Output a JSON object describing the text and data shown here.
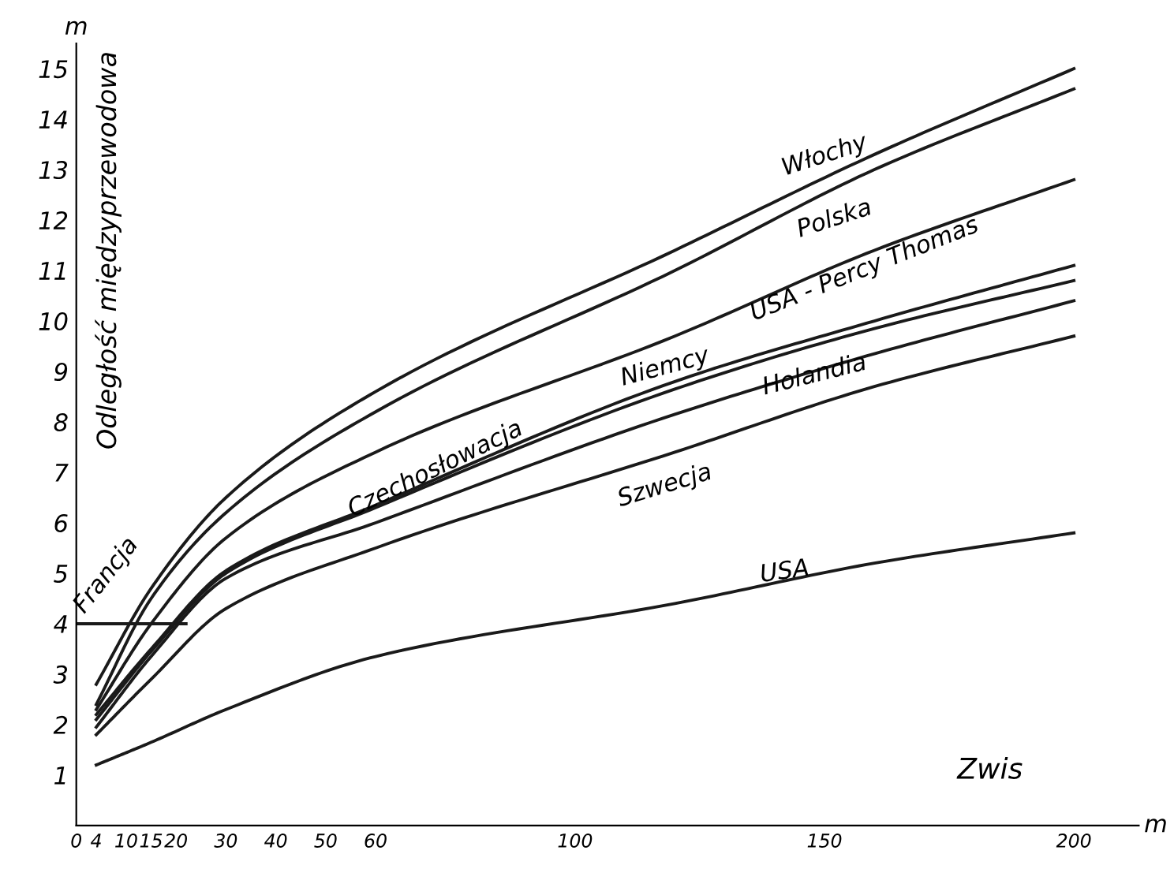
{
  "chart_data": {
    "type": "line",
    "xlabel": "Zwis",
    "ylabel": "Odległość międzyprzewodowa",
    "annotations": [
      "m",
      "m"
    ],
    "x": [
      4,
      15,
      30,
      60,
      120,
      160,
      200
    ],
    "series": [
      {
        "name": "Włochy",
        "color": "#1a1a1a",
        "values": [
          2.8,
          4.7,
          6.5,
          8.6,
          11.4,
          13.3,
          15.0
        ]
      },
      {
        "name": "Polska",
        "color": "#1a1a1a",
        "values": [
          2.4,
          4.5,
          6.2,
          8.2,
          11.0,
          13.0,
          14.6
        ]
      },
      {
        "name": "USA - Percy Thomas",
        "color": "#1a1a1a",
        "values": [
          2.3,
          4.0,
          5.7,
          7.4,
          9.7,
          11.4,
          12.8
        ]
      },
      {
        "name": "Niemcy",
        "color": "#1a1a1a",
        "values": [
          2.2,
          3.5,
          5.05,
          6.35,
          8.8,
          10.0,
          11.1
        ]
      },
      {
        "name": "Czechosłowacja",
        "color": "#1a1a1a",
        "values": [
          2.1,
          3.45,
          5.0,
          6.3,
          8.65,
          9.85,
          10.8
        ]
      },
      {
        "name": "Holandia",
        "color": "#1a1a1a",
        "values": [
          1.95,
          3.35,
          4.9,
          6.0,
          8.15,
          9.35,
          10.4
        ]
      },
      {
        "name": "Szwecja",
        "color": "#1a1a1a",
        "values": [
          1.8,
          2.9,
          4.3,
          5.5,
          7.4,
          8.7,
          9.7
        ]
      },
      {
        "name": "USA",
        "color": "#1a1a1a",
        "values": [
          1.2,
          1.65,
          2.3,
          3.35,
          4.4,
          5.2,
          5.8
        ]
      },
      {
        "name": "Francja",
        "color": "#1a1a1a",
        "x": [
          0,
          22
        ],
        "values": [
          4,
          4
        ]
      }
    ],
    "xlim": [
      0,
      213
    ],
    "ylim": [
      0,
      15.5
    ],
    "xticks": [
      0,
      4,
      10,
      15,
      20,
      30,
      40,
      50,
      60,
      100,
      150,
      200
    ],
    "yticks": [
      1,
      2,
      3,
      4,
      5,
      6,
      7,
      8,
      9,
      10,
      11,
      12,
      13,
      14,
      15
    ],
    "grid": false,
    "legend": false,
    "marker": "none",
    "line_style": "solid"
  }
}
